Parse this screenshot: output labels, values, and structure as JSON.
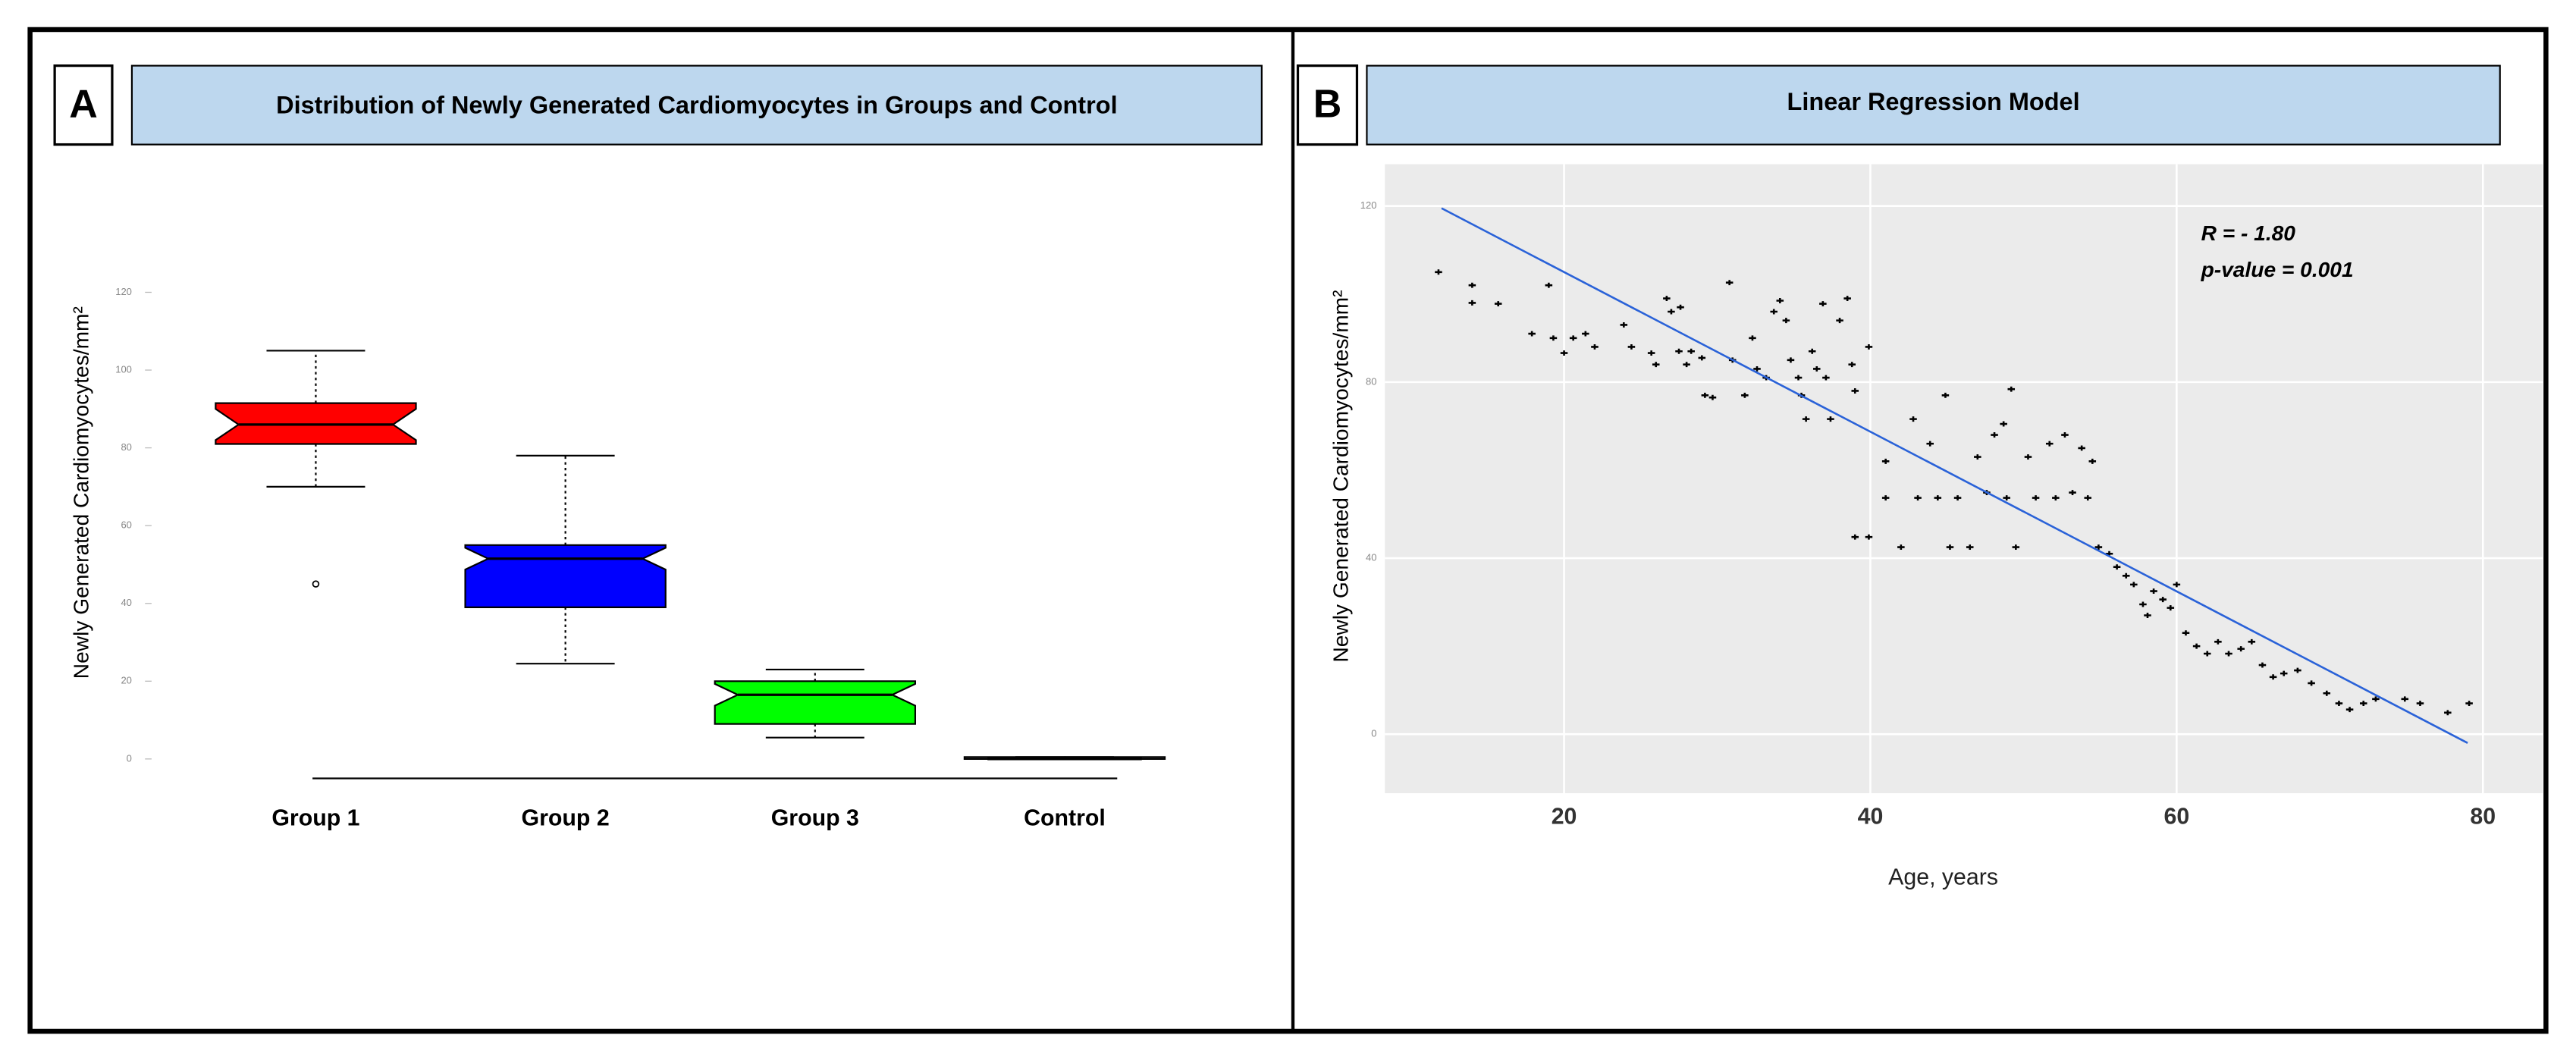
{
  "chart_data": [
    {
      "type": "box",
      "panel": "A",
      "title": "Distribution of Newly Generated Cardiomyocytes in Groups and Control",
      "y_label": "Newly Generated Cardiomyocytes/mm²",
      "categories": [
        "Group 1",
        "Group 2",
        "Group 3",
        "Control"
      ],
      "colors": [
        "#ff0000",
        "#0000ff",
        "#00ff00",
        "#666666"
      ],
      "boxes": [
        {
          "min": 70,
          "q1": 81,
          "median": 86,
          "q3": 91.5,
          "max": 105,
          "outliers": [
            45
          ]
        },
        {
          "min": 24.5,
          "q1": 39,
          "median": 51.5,
          "q3": 55,
          "max": 78
        },
        {
          "min": 5.5,
          "q1": 9,
          "median": 16.5,
          "q3": 20,
          "max": 23
        },
        {
          "min": 0,
          "q1": 0,
          "median": 0,
          "q3": 0.5,
          "max": 0.5
        }
      ],
      "ylim": [
        -5,
        120
      ],
      "yticks": [
        0,
        20,
        40,
        60,
        80,
        100,
        120
      ]
    },
    {
      "type": "scatter",
      "panel": "B",
      "title": "Linear Regression Model",
      "x_label": "Age, years",
      "y_label": "Newly Generated Cardiomyocytes/mm²",
      "annotations": [
        "R = - 1.80",
        "p-value = 0.001"
      ],
      "x": [
        11.8,
        14,
        14,
        15.7,
        19,
        17.9,
        19.3,
        20,
        20.6,
        21.4,
        22,
        23.9,
        24.4,
        25.7,
        26,
        26.7,
        27,
        27.6,
        27.5,
        28,
        28.3,
        29,
        29.2,
        29.7,
        30.8,
        31,
        31.8,
        32.3,
        32.6,
        33.2,
        33.7,
        34.1,
        34.5,
        34.8,
        35.3,
        35.5,
        35.8,
        36.2,
        36.5,
        36.9,
        37.1,
        37.4,
        38,
        38.5,
        38.8,
        39,
        39,
        39.9,
        39.9,
        41,
        41,
        42,
        42.8,
        43.1,
        43.9,
        44.4,
        44.9,
        45.2,
        45.7,
        46.5,
        47,
        47.6,
        48.1,
        48.7,
        48.9,
        49.2,
        49.5,
        50.3,
        50.8,
        51.7,
        52.1,
        52.7,
        53.2,
        53.8,
        54.2,
        54.5,
        54.9,
        55.6,
        56.1,
        56.7,
        57.2,
        57.8,
        58.1,
        58.5,
        59.1,
        59.6,
        60,
        60.6,
        61.3,
        62,
        62.7,
        63.4,
        64.2,
        64.9,
        65.6,
        66.3,
        67,
        67.9,
        68.8,
        69.8,
        70.6,
        71.3,
        72.2,
        73,
        74.9,
        75.9,
        77.7,
        79.1
      ],
      "y": [
        105,
        102,
        98,
        97.8,
        102,
        91,
        90,
        86.6,
        90,
        91,
        88,
        93,
        88,
        86.6,
        84,
        99,
        96,
        97,
        87,
        84,
        87,
        85.5,
        77,
        76.5,
        102.6,
        85,
        77,
        90,
        83,
        81,
        96,
        98.5,
        94,
        85,
        81,
        77,
        71.6,
        87,
        83,
        97.8,
        81,
        71.6,
        94,
        99,
        84,
        78,
        44.8,
        44.8,
        88,
        62,
        53.7,
        42.5,
        71.6,
        53.7,
        66,
        53.7,
        77,
        42.5,
        53.7,
        42.5,
        63,
        54.9,
        68,
        70.5,
        53.7,
        78.4,
        42.5,
        63,
        53.7,
        66,
        53.7,
        68,
        54.9,
        65,
        53.7,
        62,
        42.5,
        41,
        38,
        36,
        34,
        29.5,
        27,
        32.5,
        30.6,
        28.7,
        34,
        23,
        20,
        18.3,
        21,
        18.3,
        19.4,
        21,
        15.7,
        13,
        13.8,
        14.5,
        11.6,
        9.3,
        7,
        5.6,
        7,
        8,
        8,
        7,
        4.9,
        7
      ],
      "fit": {
        "x": [
          12,
          79
        ],
        "y": [
          119.5,
          -2
        ],
        "color": "#2a62d8"
      },
      "xlim": [
        8.3,
        83.9
      ],
      "ylim": [
        -13.4,
        129.5
      ],
      "xticks": [
        20,
        40,
        60,
        80
      ],
      "yticks": [
        0,
        40,
        80,
        120
      ],
      "grid": true
    }
  ]
}
